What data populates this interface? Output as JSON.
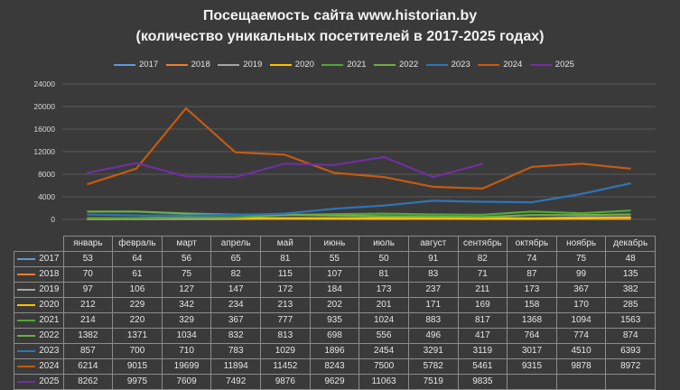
{
  "chart_data": {
    "type": "line",
    "title": "Посещаемость сайта www.historian.by",
    "subtitle": "(количество уникальных посетителей в 2017-2025 годах)",
    "categories": [
      "январь",
      "февраль",
      "март",
      "апрель",
      "май",
      "июнь",
      "июль",
      "август",
      "сентябрь",
      "октябрь",
      "ноябрь",
      "декабрь"
    ],
    "ylim": [
      0,
      24000
    ],
    "yticks": [
      0,
      4000,
      8000,
      12000,
      16000,
      20000,
      24000
    ],
    "grid": true,
    "legend_position": "top",
    "series": [
      {
        "name": "2017",
        "color": "#5b9bd5",
        "values": [
          53,
          64,
          56,
          65,
          81,
          55,
          50,
          91,
          82,
          74,
          75,
          48
        ]
      },
      {
        "name": "2018",
        "color": "#ed7d31",
        "values": [
          70,
          61,
          75,
          82,
          115,
          107,
          81,
          83,
          71,
          87,
          99,
          135
        ]
      },
      {
        "name": "2019",
        "color": "#a5a5a5",
        "values": [
          97,
          106,
          127,
          147,
          172,
          184,
          173,
          237,
          211,
          173,
          367,
          382
        ]
      },
      {
        "name": "2020",
        "color": "#ffc000",
        "values": [
          212,
          229,
          342,
          234,
          213,
          202,
          201,
          171,
          169,
          158,
          170,
          285
        ]
      },
      {
        "name": "2021",
        "color": "#4fa836",
        "values": [
          214,
          220,
          329,
          367,
          777,
          935,
          1024,
          883,
          817,
          1368,
          1094,
          1563
        ]
      },
      {
        "name": "2022",
        "color": "#70ad47",
        "values": [
          1382,
          1371,
          1034,
          832,
          813,
          698,
          556,
          496,
          417,
          764,
          774,
          874
        ]
      },
      {
        "name": "2023",
        "color": "#2e75b6",
        "values": [
          857,
          700,
          710,
          783,
          1029,
          1896,
          2454,
          3291,
          3119,
          3017,
          4510,
          6393
        ]
      },
      {
        "name": "2024",
        "color": "#c55a11",
        "values": [
          6214,
          9015,
          19699,
          11894,
          11452,
          8243,
          7500,
          5782,
          5461,
          9315,
          9878,
          8972
        ]
      },
      {
        "name": "2025",
        "color": "#7030a0",
        "values": [
          8262,
          9975,
          7609,
          7492,
          9876,
          9629,
          11063,
          7519,
          9835,
          null,
          null,
          null
        ]
      }
    ]
  }
}
